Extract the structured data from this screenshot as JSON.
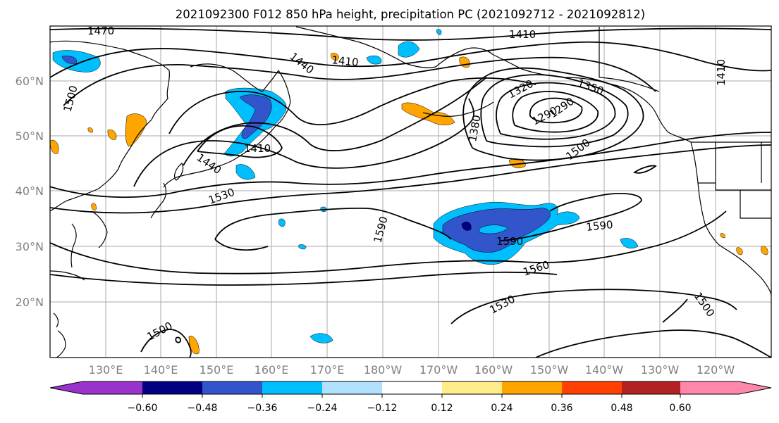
{
  "title": "2021092300 F012 850 hPa height, precipitation PC (2021092712 - 2021092812)",
  "lat_labels": [
    "60°N",
    "50°N",
    "40°N",
    "30°N",
    "20°N"
  ],
  "lon_labels": [
    "130°E",
    "140°E",
    "150°E",
    "160°E",
    "170°E",
    "180°W",
    "170°W",
    "160°W",
    "150°W",
    "140°W",
    "130°W",
    "120°W"
  ],
  "colorbar": {
    "colors": [
      "#9933cc",
      "#000080",
      "#3355cc",
      "#00bfff",
      "#b0e2ff",
      "#ffffff",
      "#ffec8b",
      "#ffa500",
      "#ff4000",
      "#b22222",
      "#ff88aa"
    ],
    "tick_labels": [
      "−0.60",
      "−0.48",
      "−0.36",
      "−0.24",
      "−0.12",
      "0.12",
      "0.24",
      "0.36",
      "0.48",
      "0.60"
    ]
  },
  "contour_labels": [
    "1470",
    "1410",
    "1410",
    "1440",
    "1500",
    "1410",
    "1440",
    "1530",
    "1380",
    "1320",
    "1290",
    "1290",
    "1350",
    "1500",
    "1410",
    "1590",
    "1590",
    "1590",
    "1560",
    "1530",
    "1500",
    "1500"
  ],
  "colors": {
    "contour": "#000000",
    "grid": "#aaaaaa",
    "coast": "#000000",
    "axis_label": "#808080"
  }
}
